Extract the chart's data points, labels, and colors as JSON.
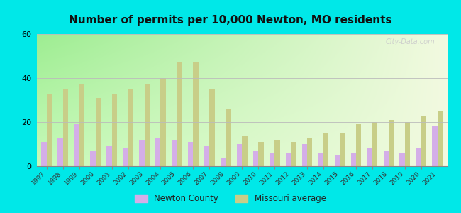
{
  "years": [
    1997,
    1998,
    1999,
    2000,
    2001,
    2002,
    2003,
    2004,
    2005,
    2006,
    2007,
    2008,
    2009,
    2010,
    2011,
    2012,
    2013,
    2014,
    2015,
    2016,
    2017,
    2018,
    2019,
    2020,
    2021
  ],
  "newton_county": [
    11,
    13,
    19,
    7,
    9,
    8,
    12,
    13,
    12,
    11,
    9,
    4,
    10,
    7,
    6,
    6,
    10,
    6,
    5,
    6,
    8,
    7,
    6,
    8,
    18
  ],
  "missouri_avg": [
    33,
    35,
    37,
    31,
    33,
    35,
    37,
    40,
    47,
    47,
    35,
    26,
    14,
    11,
    12,
    11,
    13,
    15,
    15,
    19,
    20,
    21,
    20,
    23,
    25
  ],
  "title": "Number of permits per 10,000 Newton, MO residents",
  "newton_color": "#d4aee8",
  "missouri_color": "#c8ce88",
  "bg_outer": "#00e8e8",
  "ylim": [
    0,
    60
  ],
  "yticks": [
    0,
    20,
    40,
    60
  ],
  "watermark": "City-Data.com",
  "legend_newton": "Newton County",
  "legend_missouri": "Missouri average"
}
